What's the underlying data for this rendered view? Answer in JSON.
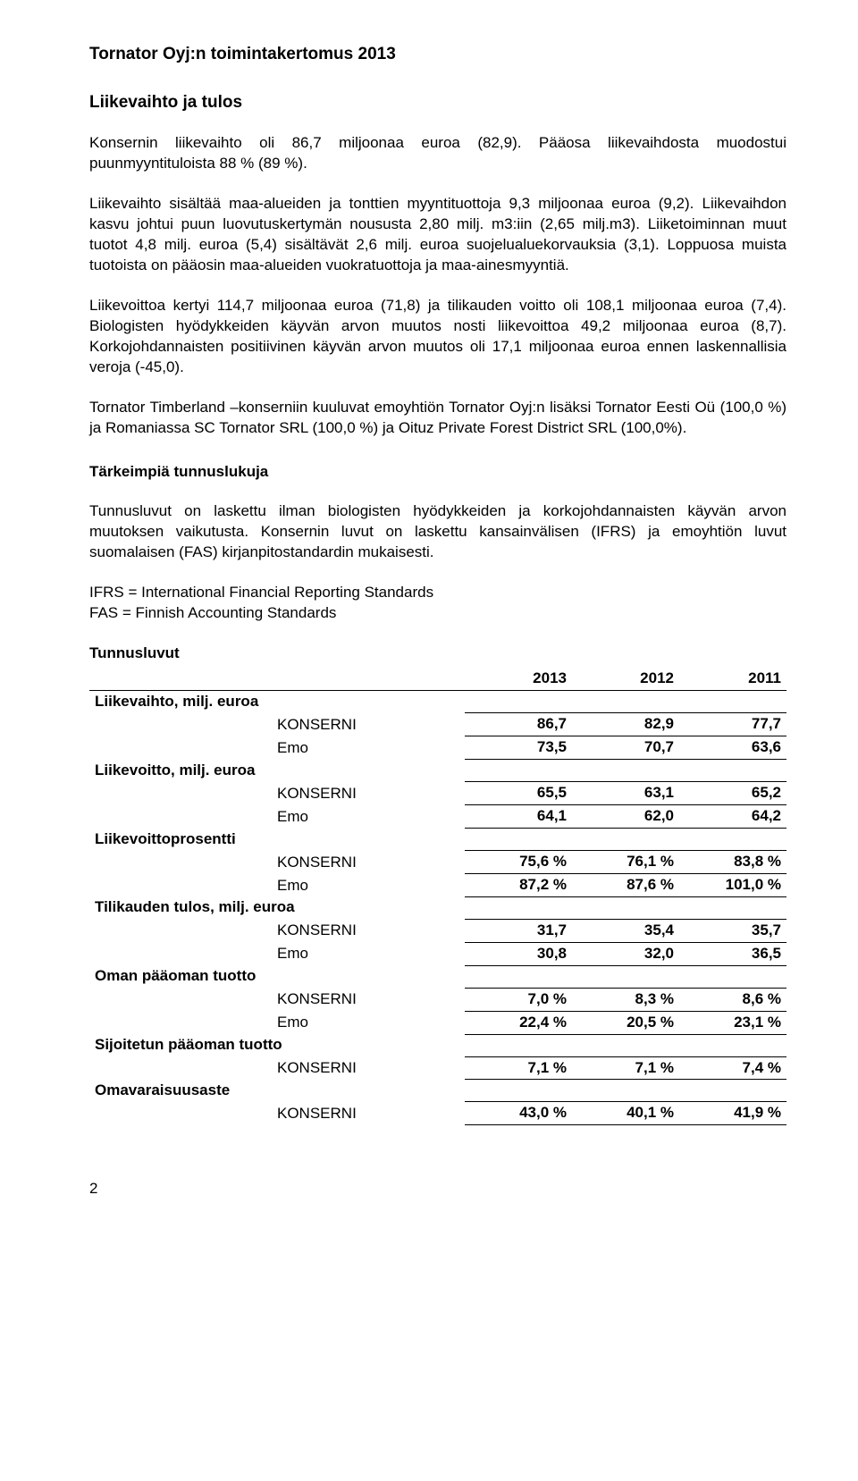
{
  "title": "Tornator Oyj:n toimintakertomus 2013",
  "section1_heading": "Liikevaihto ja tulos",
  "para1": "Konsernin liikevaihto oli 86,7 miljoonaa euroa (82,9). Pääosa liikevaihdosta muodostui puunmyyntituloista 88 % (89 %).",
  "para2": "Liikevaihto sisältää maa-alueiden ja tonttien myyntituottoja 9,3 miljoonaa euroa (9,2). Liikevaihdon kasvu johtui puun luovutuskertymän noususta 2,80 milj. m3:iin (2,65 milj.m3). Liiketoiminnan muut tuotot 4,8 milj. euroa (5,4) sisältävät 2,6 milj. euroa suojelualuekorvauksia (3,1). Loppuosa muista tuotoista on pääosin maa-alueiden vuokratuottoja ja maa-ainesmyyntiä.",
  "para3": "Liikevoittoa kertyi 114,7 miljoonaa euroa (71,8) ja tilikauden voitto oli 108,1 miljoonaa euroa (7,4). Biologisten hyödykkeiden käyvän arvon muutos nosti liikevoittoa 49,2 miljoonaa euroa (8,7). Korkojohdannaisten positiivinen käyvän arvon muutos oli 17,1 miljoonaa euroa ennen laskennallisia veroja (-45,0).",
  "para4": "Tornator Timberland –konserniin kuuluvat emoyhtiön Tornator Oyj:n lisäksi Tornator Eesti Oü (100,0 %) ja Romaniassa SC Tornator SRL (100,0 %) ja Oituz Private Forest District SRL (100,0%).",
  "section2_heading": "Tärkeimpiä tunnuslukuja",
  "para5": "Tunnusluvut on laskettu ilman biologisten hyödykkeiden ja korkojohdannaisten käyvän arvon muutoksen vaikutusta. Konsernin luvut on laskettu kansainvälisen (IFRS) ja emoyhtiön luvut suomalaisen (FAS) kirjanpitostandardin mukaisesti.",
  "def_ifrs": "IFRS = International Financial Reporting Standards",
  "def_fas": "FAS = Finnish Accounting Standards",
  "table": {
    "title": "Tunnusluvut",
    "year1": "2013",
    "year2": "2012",
    "year3": "2011",
    "rows": [
      {
        "label": "Liikevaihto, milj. euroa",
        "konserni": [
          "86,7",
          "82,9",
          "77,7"
        ],
        "emo": [
          "73,5",
          "70,7",
          "63,6"
        ]
      },
      {
        "label": "Liikevoitto, milj. euroa",
        "konserni": [
          "65,5",
          "63,1",
          "65,2"
        ],
        "emo": [
          "64,1",
          "62,0",
          "64,2"
        ]
      },
      {
        "label": "Liikevoittoprosentti",
        "konserni": [
          "75,6 %",
          "76,1 %",
          "83,8 %"
        ],
        "emo": [
          "87,2 %",
          "87,6 %",
          "101,0 %"
        ]
      },
      {
        "label": "Tilikauden tulos, milj. euroa",
        "konserni": [
          "31,7",
          "35,4",
          "35,7"
        ],
        "emo": [
          "30,8",
          "32,0",
          "36,5"
        ]
      },
      {
        "label": "Oman pääoman tuotto",
        "konserni": [
          "7,0 %",
          "8,3 %",
          "8,6 %"
        ],
        "emo": [
          "22,4 %",
          "20,5 %",
          "23,1 %"
        ]
      },
      {
        "label": "Sijoitetun pääoman tuotto",
        "konserni": [
          "7,1 %",
          "7,1 %",
          "7,4 %"
        ],
        "emo": null
      },
      {
        "label": "Omavaraisuusaste",
        "konserni": [
          "43,0 %",
          "40,1 %",
          "41,9 %"
        ],
        "emo": null
      }
    ],
    "konserni_label": "KONSERNI",
    "emo_label": "Emo"
  },
  "page_number": "2"
}
